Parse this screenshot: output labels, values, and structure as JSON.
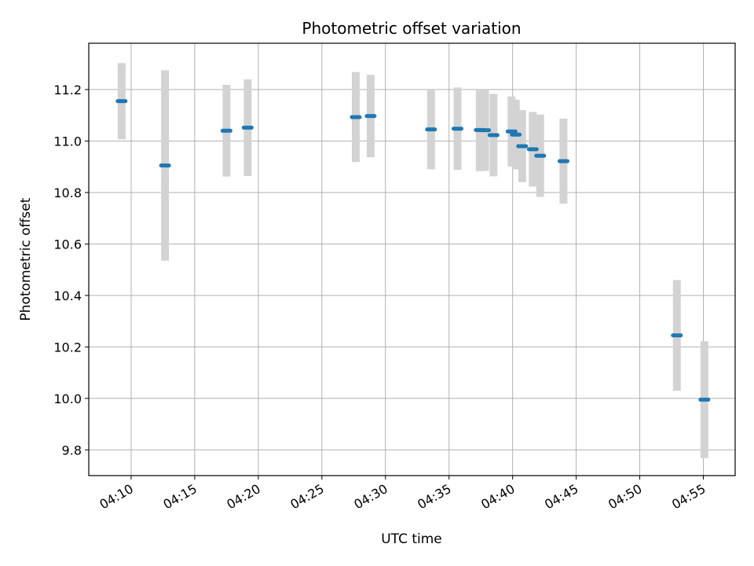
{
  "chart_data": {
    "type": "scatter",
    "title": "Photometric offset variation",
    "xlabel": "UTC time",
    "ylabel": "Photometric offset",
    "xlim": [
      "04:06:40",
      "04:57:30"
    ],
    "ylim": [
      9.7,
      11.38
    ],
    "x_ticks": [
      "04:10",
      "04:15",
      "04:20",
      "04:25",
      "04:30",
      "04:35",
      "04:40",
      "04:45",
      "04:50",
      "04:55"
    ],
    "y_ticks": [
      "9.8",
      "10.0",
      "10.2",
      "10.4",
      "10.6",
      "10.8",
      "11.0",
      "11.2"
    ],
    "y_tick_values": [
      9.8,
      10.0,
      10.2,
      10.4,
      10.6,
      10.8,
      11.0,
      11.2
    ],
    "grid": true,
    "colors": {
      "marker": "#1f77b4",
      "errorbar": "#d3d3d3",
      "grid": "#b0b0b0"
    },
    "points": [
      {
        "t": "04:09:15",
        "y": 11.155,
        "err": 0.148
      },
      {
        "t": "04:12:40",
        "y": 10.905,
        "err": 0.37
      },
      {
        "t": "04:17:30",
        "y": 11.04,
        "err": 0.178
      },
      {
        "t": "04:19:10",
        "y": 11.052,
        "err": 0.188
      },
      {
        "t": "04:27:40",
        "y": 11.093,
        "err": 0.175
      },
      {
        "t": "04:28:50",
        "y": 11.097,
        "err": 0.16
      },
      {
        "t": "04:33:35",
        "y": 11.045,
        "err": 0.155
      },
      {
        "t": "04:35:40",
        "y": 11.048,
        "err": 0.16
      },
      {
        "t": "04:37:25",
        "y": 11.043,
        "err": 0.16
      },
      {
        "t": "04:37:50",
        "y": 11.042,
        "err": 0.158
      },
      {
        "t": "04:38:30",
        "y": 11.023,
        "err": 0.16
      },
      {
        "t": "04:39:55",
        "y": 11.037,
        "err": 0.136
      },
      {
        "t": "04:40:15",
        "y": 11.025,
        "err": 0.135
      },
      {
        "t": "04:40:45",
        "y": 10.98,
        "err": 0.14
      },
      {
        "t": "04:41:35",
        "y": 10.968,
        "err": 0.145
      },
      {
        "t": "04:42:10",
        "y": 10.943,
        "err": 0.16
      },
      {
        "t": "04:44:00",
        "y": 10.922,
        "err": 0.165
      },
      {
        "t": "04:52:55",
        "y": 10.245,
        "err": 0.215
      },
      {
        "t": "04:55:05",
        "y": 9.995,
        "err": 0.227
      }
    ]
  }
}
